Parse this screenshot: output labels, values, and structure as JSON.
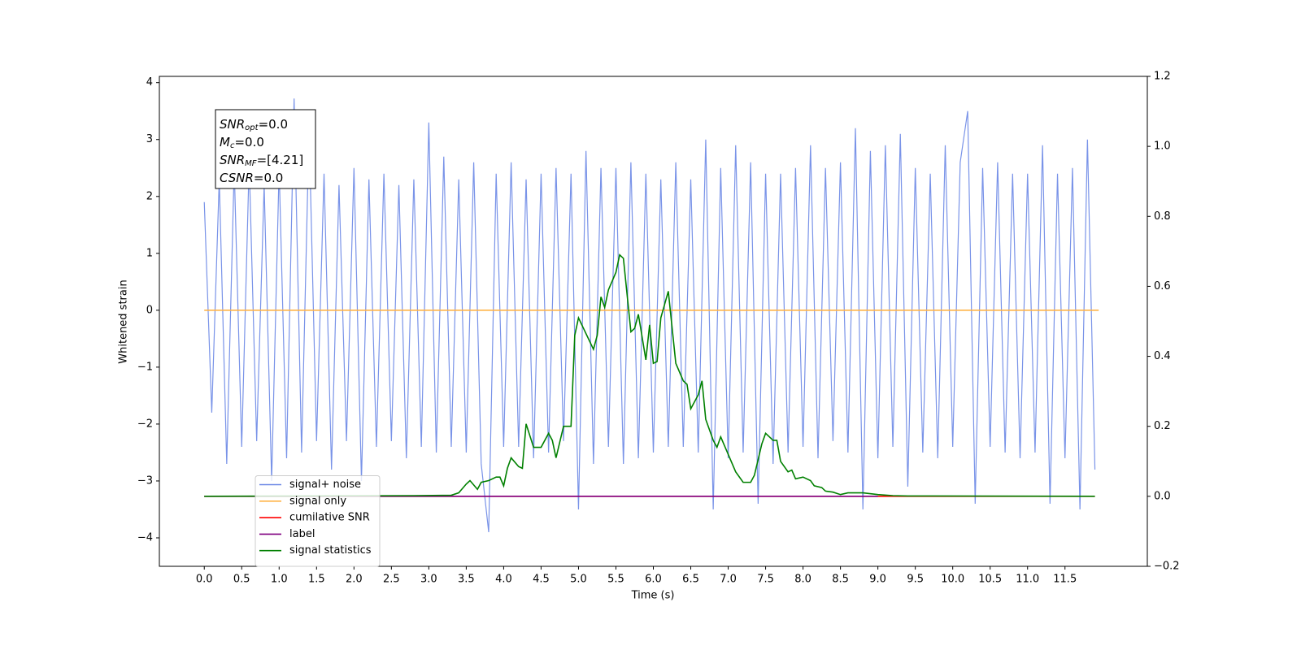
{
  "chart_data": {
    "type": "line",
    "xlabel": "Time (s)",
    "ylabel": "Whitened strain",
    "xlim": [
      -0.6,
      12.6
    ],
    "ylim": [
      -4.5,
      4.11
    ],
    "y2lim": [
      -0.2,
      1.2
    ],
    "xticks": [
      {
        "value": 0,
        "label": "0.0"
      },
      {
        "value": 0.5,
        "label": "0.5"
      },
      {
        "value": 1,
        "label": "1.0"
      },
      {
        "value": 1.5,
        "label": "1.5"
      },
      {
        "value": 2,
        "label": "2.0"
      },
      {
        "value": 2.5,
        "label": "2.5"
      },
      {
        "value": 3,
        "label": "3.0"
      },
      {
        "value": 3.5,
        "label": "3.5"
      },
      {
        "value": 4,
        "label": "4.0"
      },
      {
        "value": 4.5,
        "label": "4.5"
      },
      {
        "value": 5,
        "label": "5.0"
      },
      {
        "value": 5.5,
        "label": "5.5"
      },
      {
        "value": 6,
        "label": "6.0"
      },
      {
        "value": 6.5,
        "label": "6.5"
      },
      {
        "value": 7,
        "label": "7.0"
      },
      {
        "value": 7.5,
        "label": "7.5"
      },
      {
        "value": 8,
        "label": "8.0"
      },
      {
        "value": 8.5,
        "label": "8.5"
      },
      {
        "value": 9,
        "label": "9.0"
      },
      {
        "value": 9.5,
        "label": "9.5"
      },
      {
        "value": 10,
        "label": "10.0"
      },
      {
        "value": 10.5,
        "label": "10.5"
      },
      {
        "value": 11,
        "label": "11.0"
      },
      {
        "value": 11.5,
        "label": "11.5"
      }
    ],
    "yticks": [
      {
        "value": -4,
        "label": "−4"
      },
      {
        "value": -3,
        "label": "−3"
      },
      {
        "value": -2,
        "label": "−2"
      },
      {
        "value": -1,
        "label": "−1"
      },
      0,
      1,
      2,
      3,
      4
    ],
    "y2ticks": [
      {
        "value": -0.2,
        "label": "−0.2"
      },
      {
        "value": 0,
        "label": "0.0"
      },
      {
        "value": 0.2,
        "label": "0.2"
      },
      {
        "value": 0.4,
        "label": "0.4"
      },
      {
        "value": 0.6,
        "label": "0.6"
      },
      {
        "value": 0.8,
        "label": "0.8"
      },
      {
        "value": 1,
        "label": "1.0"
      },
      {
        "value": 1.2,
        "label": "1.2"
      }
    ],
    "legend": "lower left",
    "annotation": [
      {
        "name": "SNR",
        "sub": "opt",
        "text": "=0.0"
      },
      {
        "name": "M",
        "sub": "c",
        "text": "=0.0"
      },
      {
        "name": "SNR",
        "sub": "MF",
        "text": "=[4.21]"
      },
      {
        "name": "CSNR",
        "text": "=0.0"
      }
    ],
    "series": [
      {
        "name": "signal+ noise",
        "color": "#6a87e6",
        "axis": "y",
        "x": [
          0,
          0.1,
          0.2,
          0.3,
          0.4,
          0.5,
          0.6,
          0.7,
          0.8,
          0.9,
          1,
          1.1,
          1.2,
          1.3,
          1.4,
          1.5,
          1.6,
          1.7,
          1.8,
          1.9,
          2,
          2.1,
          2.2,
          2.3,
          2.4,
          2.5,
          2.6,
          2.7,
          2.8,
          2.9,
          3,
          3.1,
          3.2,
          3.3,
          3.4,
          3.5,
          3.6,
          3.7,
          3.8,
          3.9,
          4,
          4.1,
          4.2,
          4.3,
          4.4,
          4.5,
          4.6,
          4.7,
          4.8,
          4.9,
          5,
          5.1,
          5.2,
          5.3,
          5.4,
          5.5,
          5.6,
          5.7,
          5.8,
          5.9,
          6,
          6.1,
          6.2,
          6.3,
          6.4,
          6.5,
          6.6,
          6.7,
          6.8,
          6.9,
          7,
          7.1,
          7.2,
          7.3,
          7.4,
          7.5,
          7.6,
          7.7,
          7.8,
          7.9,
          8,
          8.1,
          8.2,
          8.3,
          8.4,
          8.5,
          8.6,
          8.7,
          8.8,
          8.9,
          9,
          9.1,
          9.2,
          9.3,
          9.4,
          9.5,
          9.6,
          9.7,
          9.8,
          9.9,
          10,
          10.1,
          10.2,
          10.3,
          10.4,
          10.5,
          10.6,
          10.7,
          10.8,
          10.9,
          11,
          11.1,
          11.2,
          11.3,
          11.4,
          11.5,
          11.6,
          11.7,
          11.8,
          11.9
        ],
        "values": [
          1.9,
          -1.8,
          2.3,
          -2.7,
          2.5,
          -2.4,
          2.6,
          -2.3,
          2.2,
          -3.0,
          2.5,
          -2.6,
          3.72,
          -2.5,
          3.2,
          -2.3,
          2.4,
          -2.8,
          2.2,
          -2.3,
          2.5,
          -3.0,
          2.3,
          -2.4,
          2.4,
          -2.3,
          2.2,
          -2.6,
          2.3,
          -2.4,
          3.3,
          -2.5,
          2.7,
          -2.4,
          2.3,
          -2.5,
          2.6,
          -2.7,
          -3.9,
          2.4,
          -2.4,
          2.6,
          -2.4,
          2.3,
          -2.6,
          2.4,
          -2.5,
          2.5,
          -2.3,
          2.4,
          -3.5,
          2.8,
          -2.7,
          2.5,
          -2.4,
          2.5,
          -2.7,
          2.6,
          -2.6,
          2.4,
          -2.5,
          2.3,
          -2.4,
          2.6,
          -2.4,
          2.3,
          -2.5,
          3.0,
          -3.5,
          2.5,
          -2.6,
          2.9,
          -2.5,
          2.6,
          -3.4,
          2.4,
          -2.7,
          2.4,
          -2.5,
          2.5,
          -2.4,
          2.9,
          -2.6,
          2.5,
          -2.3,
          2.6,
          -2.5,
          3.2,
          -3.5,
          2.8,
          -2.6,
          2.9,
          -2.4,
          3.1,
          -3.1,
          2.5,
          -2.5,
          2.4,
          -2.6,
          2.9,
          -2.4,
          2.6,
          3.5,
          -3.4,
          2.5,
          -2.4,
          2.6,
          -2.5,
          2.4,
          -2.6,
          2.4,
          -2.5,
          2.9,
          -3.4,
          2.4,
          -2.6,
          2.5,
          -3.5,
          3.0,
          -2.8
        ]
      },
      {
        "name": "signal only",
        "color": "#ffb347",
        "axis": "y",
        "x": [
          0,
          11.95
        ],
        "values": [
          0,
          0
        ]
      },
      {
        "name": "cumilative SNR",
        "color": "#ff0000",
        "axis": "y2",
        "x": [
          0,
          11.9
        ],
        "values": [
          0,
          0
        ]
      },
      {
        "name": "label",
        "color": "#800080",
        "axis": "y2",
        "x": [
          0,
          9.0
        ],
        "values": [
          0,
          0
        ]
      },
      {
        "name": "signal statistics",
        "color": "#008000",
        "axis": "y2",
        "x": [
          0,
          2.8,
          3.3,
          3.4,
          3.5,
          3.55,
          3.65,
          3.7,
          3.8,
          3.9,
          3.95,
          4.0,
          4.05,
          4.1,
          4.2,
          4.25,
          4.3,
          4.4,
          4.5,
          4.6,
          4.65,
          4.7,
          4.8,
          4.9,
          4.95,
          5.0,
          5.2,
          5.25,
          5.3,
          5.35,
          5.4,
          5.5,
          5.55,
          5.6,
          5.7,
          5.75,
          5.8,
          5.9,
          5.95,
          6.0,
          6.05,
          6.1,
          6.2,
          6.3,
          6.4,
          6.45,
          6.5,
          6.6,
          6.65,
          6.7,
          6.8,
          6.85,
          6.9,
          7.0,
          7.1,
          7.2,
          7.3,
          7.35,
          7.45,
          7.5,
          7.6,
          7.65,
          7.7,
          7.8,
          7.85,
          7.9,
          8.0,
          8.1,
          8.15,
          8.25,
          8.3,
          8.4,
          8.5,
          8.6,
          8.8,
          9.0,
          9.2,
          9.4,
          11.9
        ],
        "values": [
          0,
          0.002,
          0.003,
          0.01,
          0.035,
          0.045,
          0.02,
          0.04,
          0.045,
          0.055,
          0.055,
          0.03,
          0.08,
          0.11,
          0.085,
          0.08,
          0.207,
          0.14,
          0.14,
          0.18,
          0.16,
          0.11,
          0.2,
          0.2,
          0.46,
          0.51,
          0.42,
          0.46,
          0.57,
          0.54,
          0.59,
          0.64,
          0.69,
          0.68,
          0.47,
          0.48,
          0.52,
          0.39,
          0.49,
          0.38,
          0.385,
          0.51,
          0.586,
          0.38,
          0.33,
          0.32,
          0.25,
          0.29,
          0.33,
          0.22,
          0.16,
          0.14,
          0.17,
          0.12,
          0.07,
          0.04,
          0.04,
          0.06,
          0.15,
          0.18,
          0.16,
          0.16,
          0.1,
          0.07,
          0.075,
          0.05,
          0.055,
          0.045,
          0.03,
          0.025,
          0.015,
          0.012,
          0.005,
          0.01,
          0.01,
          0.005,
          0.002,
          0.001,
          0
        ]
      }
    ]
  }
}
